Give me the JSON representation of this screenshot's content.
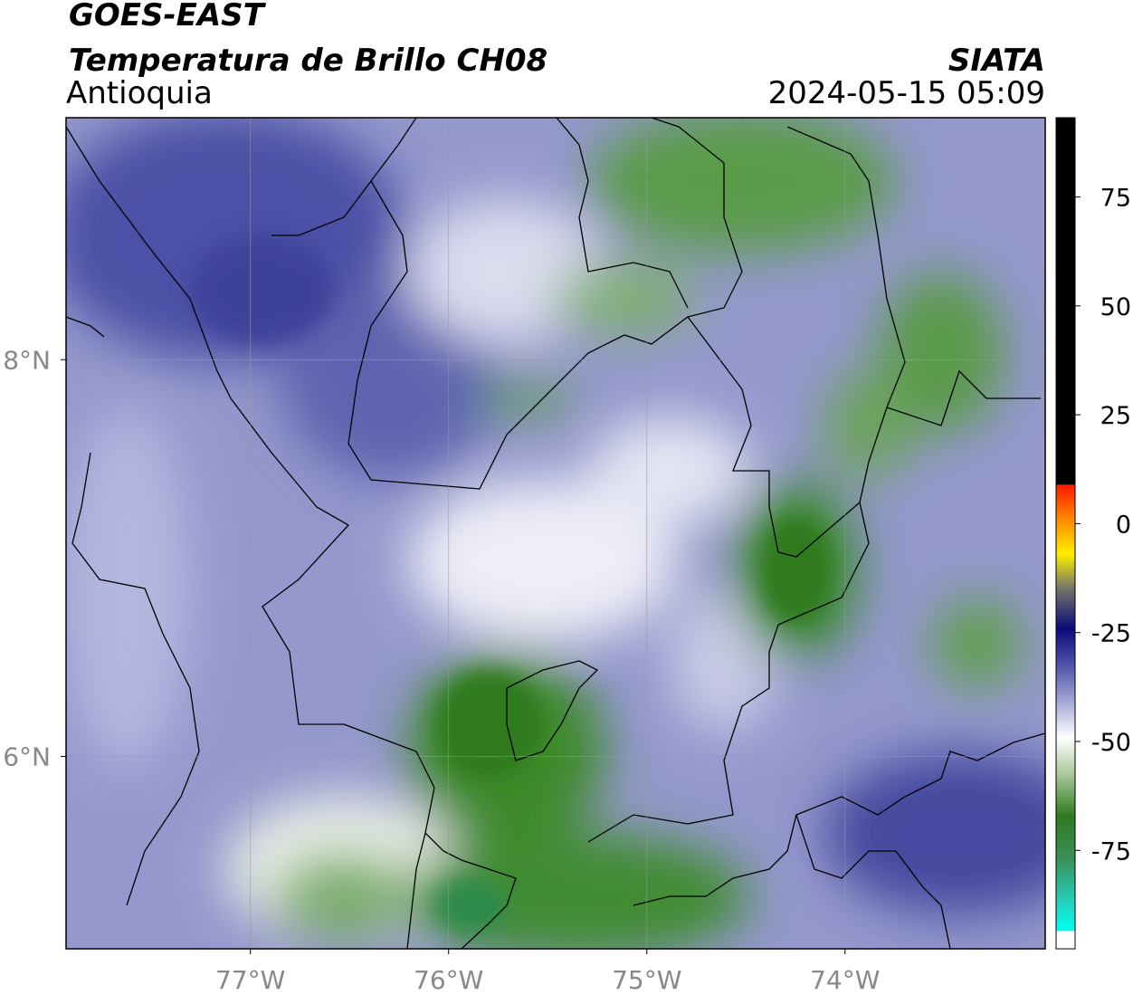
{
  "header": {
    "satellite": "GOES-EAST",
    "product": "Temperatura de Brillo CH08",
    "region": "Antioquia",
    "source": "SIATA",
    "datetime": "2024-05-15 05:09"
  },
  "map": {
    "xlim": [
      -77.93,
      -72.99
    ],
    "ylim": [
      5.03,
      9.22
    ],
    "xticks": [
      {
        "value": -77,
        "label": "77°W"
      },
      {
        "value": -76,
        "label": "76°W"
      },
      {
        "value": -75,
        "label": "75°W"
      },
      {
        "value": -74,
        "label": "74°W"
      }
    ],
    "yticks": [
      {
        "value": 6,
        "label": "6°N"
      },
      {
        "value": 8,
        "label": "8°N"
      }
    ],
    "grid": true
  },
  "colorbar": {
    "lim": [
      -97.6,
      93.2
    ],
    "ticks": [
      -75,
      -50,
      -25,
      0,
      25,
      50,
      75
    ]
  }
}
